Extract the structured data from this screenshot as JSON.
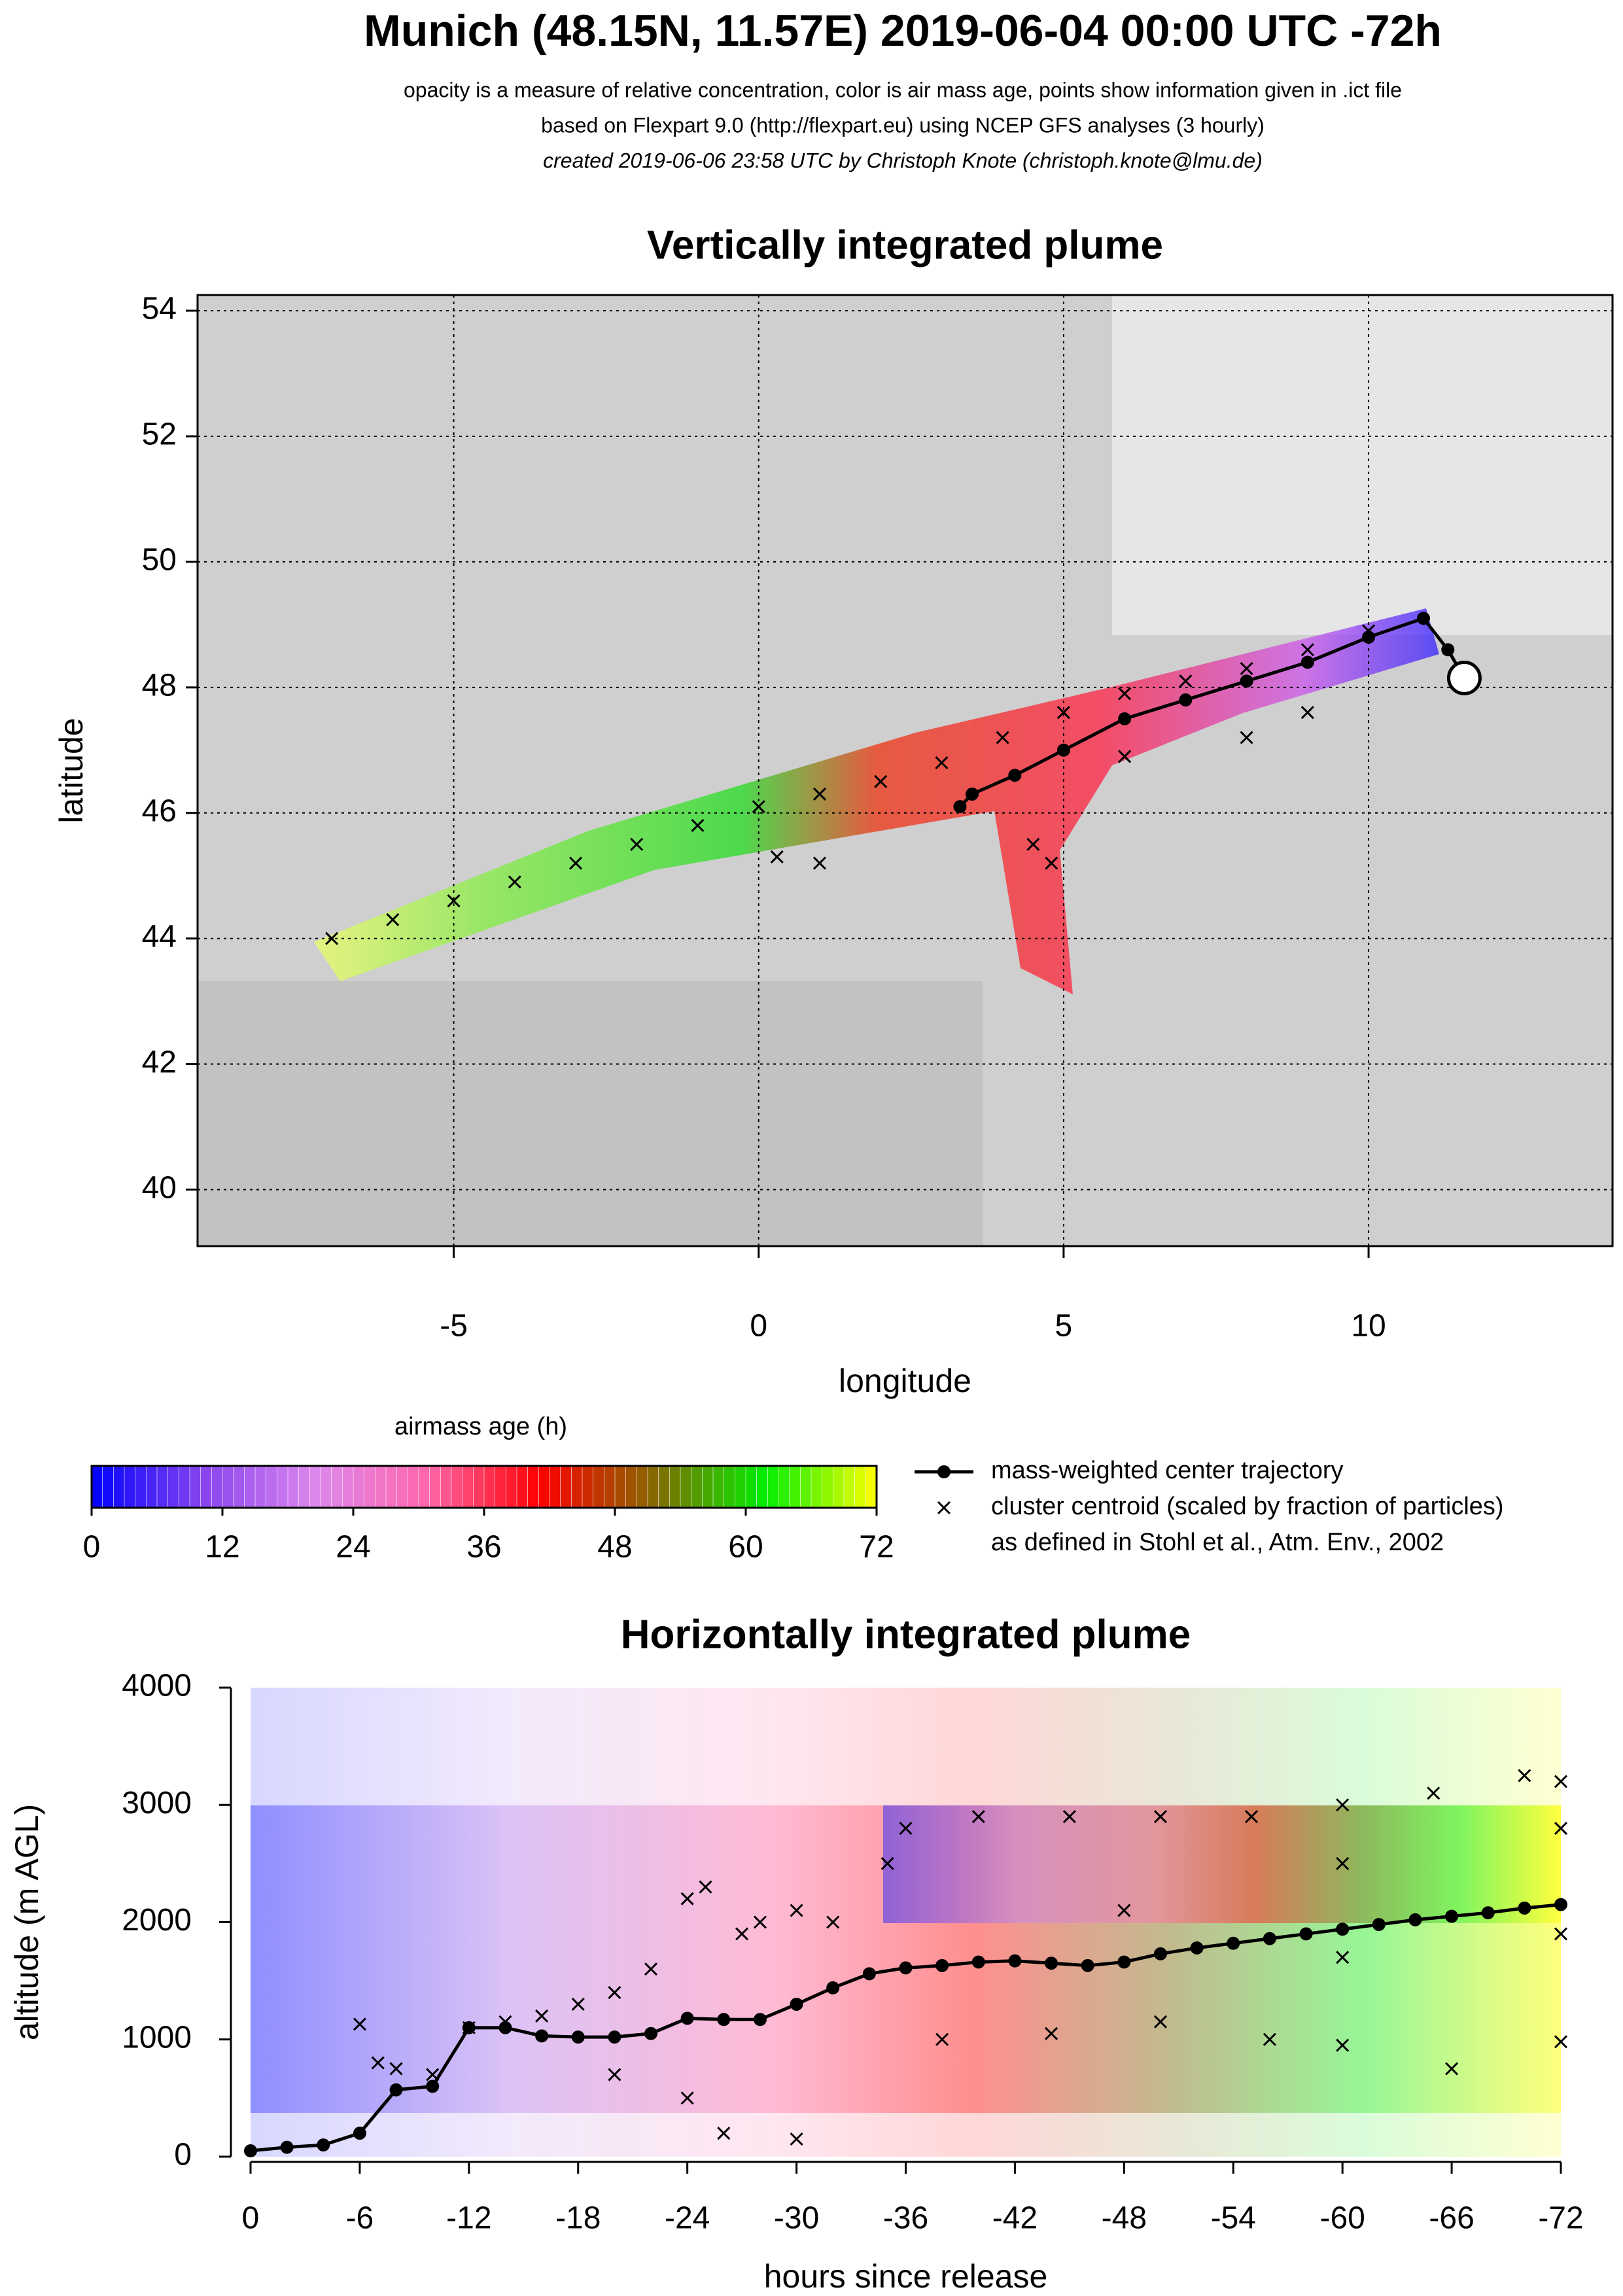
{
  "header": {
    "title": "Munich (48.15N, 11.57E) 2019-06-04 00:00 UTC -72h",
    "lines": [
      "opacity is a measure of relative concentration, color is air mass age, points show information given in .ict file",
      "based on Flexpart 9.0 (http://flexpart.eu) using NCEP GFS analyses (3 hourly)"
    ],
    "credit": "created 2019-06-06 23:58 UTC by Christoph Knote (christoph.knote@lmu.de)"
  },
  "chart_data": [
    {
      "type": "line",
      "title": "Vertically integrated plume",
      "xlabel": "longitude",
      "ylabel": "latitude",
      "xlim": [
        -9.2,
        14.0
      ],
      "ylim": [
        39.1,
        54.25
      ],
      "xticks": [
        -5,
        0,
        5,
        10
      ],
      "yticks": [
        40,
        42,
        44,
        46,
        48,
        50,
        52,
        54
      ],
      "grid": true,
      "frame": true,
      "release": [
        11.57,
        48.15
      ],
      "series": [
        {
          "name": "mass-weighted center trajectory",
          "marker": "o",
          "color": "#000000",
          "x": [
            11.57,
            11.3,
            10.9,
            10.0,
            9.0,
            8.0,
            7.0,
            6.0,
            5.0,
            4.2,
            3.5,
            3.3
          ],
          "values": [
            48.15,
            48.6,
            49.1,
            48.8,
            48.4,
            48.1,
            47.8,
            47.5,
            47.0,
            46.6,
            46.3,
            46.1
          ]
        },
        {
          "name": "cluster centroid (scaled by fraction of particles)",
          "marker": "x",
          "color": "#000000",
          "x": [
            -7,
            -6,
            -5,
            -4,
            -3,
            -2,
            -1,
            0,
            1,
            2,
            3,
            4,
            5,
            6,
            7,
            8,
            9,
            10,
            4.5,
            4.8,
            0.3,
            1.0,
            6.0,
            8.0,
            9.0
          ],
          "values": [
            44.0,
            44.3,
            44.6,
            44.9,
            45.2,
            45.5,
            45.8,
            46.1,
            46.3,
            46.5,
            46.8,
            47.2,
            47.6,
            47.9,
            48.1,
            48.3,
            48.6,
            48.9,
            45.5,
            45.2,
            45.3,
            45.2,
            46.9,
            47.2,
            47.6
          ]
        }
      ],
      "legend_note": "as defined in Stohl et al., Atm. Env., 2002"
    },
    {
      "type": "colorbar",
      "title": "airmass age (h)",
      "xlim": [
        0,
        72
      ],
      "xticks": [
        0,
        12,
        24,
        36,
        48,
        60,
        72
      ],
      "colors": [
        "#0000ff",
        "#8844ee",
        "#dd88ee",
        "#ff66aa",
        "#ff0000",
        "#886600",
        "#00ee00",
        "#ffff00"
      ]
    },
    {
      "type": "line",
      "title": "Horizontally integrated plume",
      "xlabel": "hours since release",
      "ylabel": "altitude (m AGL)",
      "xlim": [
        0,
        -72
      ],
      "ylim": [
        0,
        4000
      ],
      "xticks": [
        0,
        -6,
        -12,
        -18,
        -24,
        -30,
        -36,
        -42,
        -48,
        -54,
        -60,
        -66,
        -72
      ],
      "yticks": [
        0,
        1000,
        2000,
        3000,
        4000
      ],
      "grid": false,
      "frame": false,
      "series": [
        {
          "name": "mass-weighted center trajectory",
          "marker": "o",
          "color": "#000000",
          "x": [
            0,
            -2,
            -4,
            -6,
            -8,
            -10,
            -12,
            -14,
            -16,
            -18,
            -20,
            -22,
            -24,
            -26,
            -28,
            -30,
            -32,
            -34,
            -36,
            -38,
            -40,
            -42,
            -44,
            -46,
            -48,
            -50,
            -52,
            -54,
            -56,
            -58,
            -60,
            -62,
            -64,
            -66,
            -68,
            -70,
            -72
          ],
          "values": [
            50,
            80,
            100,
            200,
            570,
            600,
            1100,
            1100,
            1030,
            1020,
            1020,
            1050,
            1180,
            1170,
            1170,
            1300,
            1440,
            1560,
            1610,
            1630,
            1660,
            1670,
            1650,
            1630,
            1660,
            1730,
            1780,
            1820,
            1860,
            1900,
            1940,
            1980,
            2020,
            2050,
            2080,
            2120,
            2150
          ]
        },
        {
          "name": "cluster centroid (scaled by fraction of particles)",
          "marker": "x",
          "color": "#000000",
          "x": [
            -6,
            -7,
            -8,
            -10,
            -12,
            -14,
            -16,
            -18,
            -20,
            -22,
            -24,
            -25,
            -27,
            -28,
            -30,
            -32,
            -35,
            -36,
            -40,
            -45,
            -50,
            -55,
            -60,
            -65,
            -70,
            -72,
            -20,
            -24,
            -26,
            -30,
            -38,
            -44,
            -50,
            -56,
            -60,
            -66,
            -72,
            -48,
            -60,
            -72,
            -60,
            -72
          ],
          "values": [
            1130,
            800,
            750,
            700,
            1100,
            1150,
            1200,
            1300,
            1400,
            1600,
            2200,
            2300,
            1900,
            2000,
            2100,
            2000,
            2500,
            2800,
            2900,
            2900,
            2900,
            2900,
            3000,
            3100,
            3250,
            3200,
            700,
            500,
            200,
            150,
            1000,
            1050,
            1150,
            1000,
            950,
            750,
            980,
            2100,
            2500,
            2800,
            1700,
            1900
          ]
        }
      ]
    }
  ]
}
